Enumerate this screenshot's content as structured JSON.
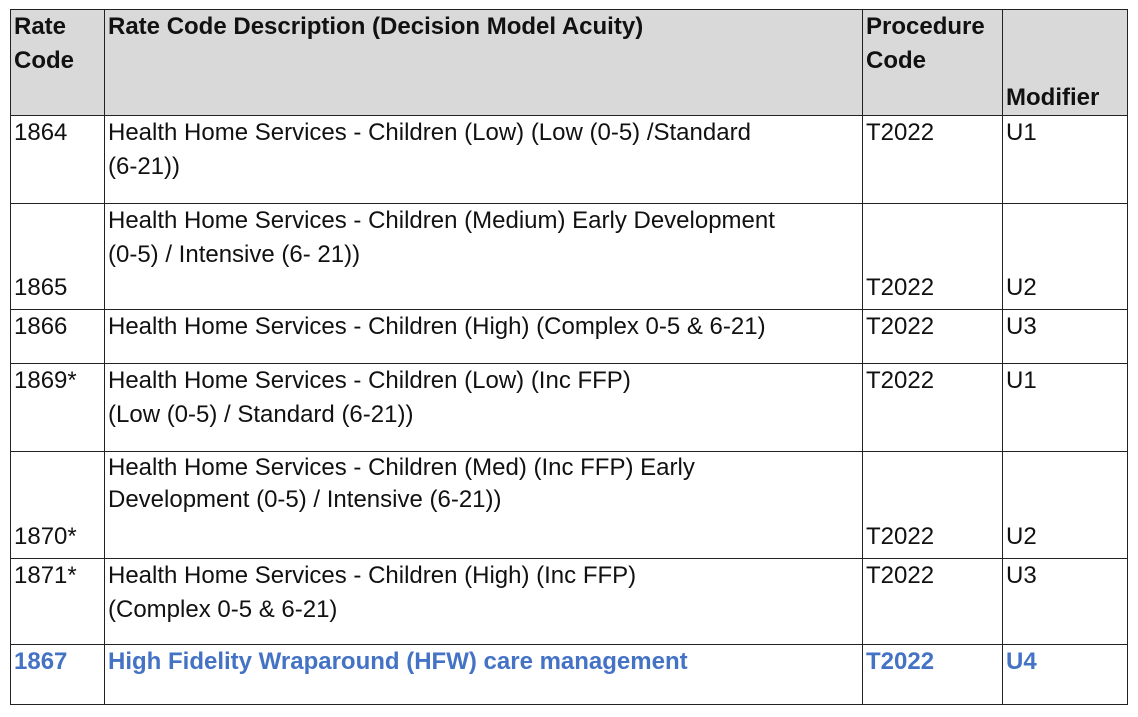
{
  "table": {
    "headers": {
      "rate_code": [
        "Rate",
        "Code"
      ],
      "description": "Rate Code Description (Decision Model Acuity)",
      "procedure_code": [
        "Procedure",
        "Code"
      ],
      "modifier": "Modifier"
    },
    "rows": [
      {
        "rate_code": "1864",
        "desc_lines": [
          "Health Home Services - Children (Low) (Low (0-5) /Standard",
          "(6-21))"
        ],
        "procedure_code": "T2022",
        "modifier": "U1"
      },
      {
        "rate_code": "1865",
        "desc_lines": [
          "Health Home Services - Children (Medium) Early Development",
          "(0-5) / Intensive (6- 21))"
        ],
        "procedure_code": "T2022",
        "modifier": "U2"
      },
      {
        "rate_code": "1866",
        "desc_lines": [
          "Health Home Services - Children (High) (Complex 0-5 & 6-21)"
        ],
        "procedure_code": "T2022",
        "modifier": "U3"
      },
      {
        "rate_code": "1869*",
        "desc_lines": [
          "Health Home Services - Children (Low) (Inc FFP)",
          "(Low (0-5) / Standard (6-21))"
        ],
        "procedure_code": "T2022",
        "modifier": "U1"
      },
      {
        "rate_code": "1870*",
        "desc_lines": [
          "Health Home Services - Children (Med) (Inc FFP) Early",
          "Development (0-5) / Intensive (6-21))"
        ],
        "procedure_code": "T2022",
        "modifier": "U2"
      },
      {
        "rate_code": "1871*",
        "desc_lines": [
          "Health Home Services - Children (High) (Inc FFP)",
          "(Complex 0-5 & 6-21)"
        ],
        "procedure_code": "T2022",
        "modifier": "U3"
      },
      {
        "rate_code": "1867",
        "desc_lines": [
          "High Fidelity Wraparound (HFW) care management"
        ],
        "procedure_code": "T2022",
        "modifier": "U4"
      }
    ],
    "highlight_color": "#4472c4",
    "header_bg_color": "#d9d9d9"
  }
}
